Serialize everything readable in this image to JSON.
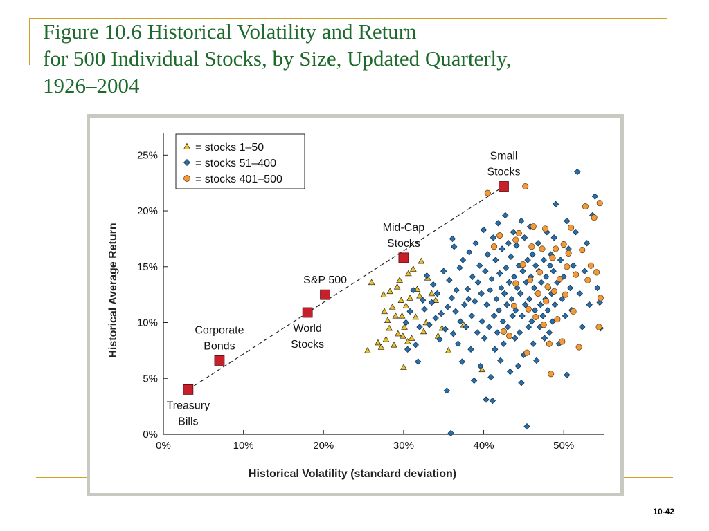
{
  "slide": {
    "title_lines": [
      "Figure 10.6  Historical Volatility and Return",
      "for 500 Individual Stocks, by Size, Updated Quarterly,",
      "1926–2004"
    ],
    "page_number": "10-42"
  },
  "colors": {
    "title": "#1d6a2c",
    "accent_rule": "#d4a020",
    "portfolio_marker": "#c8202a",
    "stocks_1_50": "#f0c030",
    "stocks_51_400": "#2a6fa8",
    "stocks_401_500": "#f2993a"
  },
  "chart_data": {
    "type": "scatter",
    "xlabel": "Historical Volatility (standard deviation)",
    "ylabel": "Historical Average Return",
    "xlim": [
      0,
      55
    ],
    "ylim": [
      0,
      27
    ],
    "x_ticks": [
      0,
      10,
      20,
      30,
      40,
      50
    ],
    "y_ticks": [
      0,
      5,
      10,
      15,
      20,
      25
    ],
    "x_tick_labels": [
      "0%",
      "10%",
      "20%",
      "30%",
      "40%",
      "50%"
    ],
    "y_tick_labels": [
      "0%",
      "5%",
      "10%",
      "15%",
      "20%",
      "25%"
    ],
    "grid": false,
    "legend_position": "top-left",
    "legend": [
      {
        "marker": "triangle",
        "label": "= stocks 1–50"
      },
      {
        "marker": "diamond",
        "label": "= stocks 51–400"
      },
      {
        "marker": "circle",
        "label": "= stocks 401–500"
      }
    ],
    "portfolios": [
      {
        "name": "Treasury Bills",
        "lines": [
          "Treasury",
          "Bills"
        ],
        "x": 3.1,
        "y": 4.0,
        "label_pos": "below"
      },
      {
        "name": "Corporate Bonds",
        "lines": [
          "Corporate",
          "Bonds"
        ],
        "x": 7.0,
        "y": 6.6,
        "label_pos": "above"
      },
      {
        "name": "World Stocks",
        "lines": [
          "World",
          "Stocks"
        ],
        "x": 18.0,
        "y": 10.9,
        "label_pos": "below"
      },
      {
        "name": "S&P 500",
        "lines": [
          "S&P 500"
        ],
        "x": 20.2,
        "y": 12.5,
        "label_pos": "above"
      },
      {
        "name": "Mid-Cap Stocks",
        "lines": [
          "Mid-Cap",
          "Stocks"
        ],
        "x": 30.0,
        "y": 15.8,
        "label_pos": "above"
      },
      {
        "name": "Small Stocks",
        "lines": [
          "Small",
          "Stocks"
        ],
        "x": 42.5,
        "y": 22.2,
        "label_pos": "above"
      }
    ],
    "trend_line": {
      "from": [
        3.1,
        4.0
      ],
      "to": [
        42.5,
        22.2
      ],
      "style": "dashed"
    },
    "series": [
      {
        "name": "stocks 1–50",
        "marker": "triangle",
        "points": [
          [
            25.5,
            7.5
          ],
          [
            26.0,
            13.6
          ],
          [
            26.8,
            8.2
          ],
          [
            27.2,
            7.8
          ],
          [
            27.5,
            12.5
          ],
          [
            27.6,
            11.0
          ],
          [
            27.8,
            8.5
          ],
          [
            28.0,
            10.2
          ],
          [
            28.2,
            9.5
          ],
          [
            28.3,
            12.8
          ],
          [
            28.6,
            11.4
          ],
          [
            28.8,
            8.0
          ],
          [
            29.0,
            10.6
          ],
          [
            29.2,
            13.2
          ],
          [
            29.3,
            9.0
          ],
          [
            29.5,
            13.8
          ],
          [
            29.7,
            12.0
          ],
          [
            29.8,
            10.6
          ],
          [
            29.9,
            8.8
          ],
          [
            30.0,
            6.0
          ],
          [
            30.1,
            9.6
          ],
          [
            30.3,
            11.5
          ],
          [
            30.5,
            8.3
          ],
          [
            30.6,
            14.4
          ],
          [
            30.8,
            12.2
          ],
          [
            31.0,
            8.6
          ],
          [
            31.2,
            14.8
          ],
          [
            31.5,
            10.5
          ],
          [
            31.7,
            13.0
          ],
          [
            32.0,
            12.4
          ],
          [
            32.2,
            15.5
          ],
          [
            32.5,
            9.2
          ],
          [
            32.8,
            10.0
          ],
          [
            33.0,
            14.0
          ],
          [
            33.5,
            12.6
          ],
          [
            34.0,
            12.0
          ],
          [
            34.3,
            8.8
          ],
          [
            34.8,
            9.5
          ],
          [
            35.6,
            7.5
          ],
          [
            37.5,
            9.8
          ],
          [
            39.8,
            5.8
          ]
        ]
      },
      {
        "name": "stocks 51–400",
        "marker": "diamond",
        "points": [
          [
            30.3,
            10.0
          ],
          [
            30.5,
            7.6
          ],
          [
            30.8,
            11.0
          ],
          [
            31.2,
            12.9
          ],
          [
            31.5,
            8.0
          ],
          [
            31.8,
            6.5
          ],
          [
            32.0,
            9.6
          ],
          [
            32.4,
            12.0
          ],
          [
            32.6,
            11.2
          ],
          [
            32.9,
            14.2
          ],
          [
            33.2,
            9.8
          ],
          [
            33.5,
            11.8
          ],
          [
            33.7,
            13.4
          ],
          [
            34.0,
            10.4
          ],
          [
            34.2,
            12.6
          ],
          [
            34.5,
            8.5
          ],
          [
            34.7,
            10.8
          ],
          [
            35.0,
            14.6
          ],
          [
            35.2,
            9.4
          ],
          [
            35.4,
            3.9
          ],
          [
            35.5,
            11.4
          ],
          [
            35.7,
            13.8
          ],
          [
            35.9,
            0.1
          ],
          [
            36.0,
            12.2
          ],
          [
            36.1,
            17.5
          ],
          [
            36.2,
            9.0
          ],
          [
            36.3,
            16.8
          ],
          [
            36.5,
            11.0
          ],
          [
            36.6,
            12.9
          ],
          [
            36.8,
            8.1
          ],
          [
            37.0,
            14.9
          ],
          [
            37.1,
            10.1
          ],
          [
            37.3,
            6.5
          ],
          [
            37.4,
            15.6
          ],
          [
            37.6,
            11.6
          ],
          [
            37.8,
            9.6
          ],
          [
            38.0,
            13.0
          ],
          [
            38.1,
            12.1
          ],
          [
            38.2,
            16.3
          ],
          [
            38.4,
            7.6
          ],
          [
            38.5,
            10.6
          ],
          [
            38.6,
            14.1
          ],
          [
            38.8,
            4.8
          ],
          [
            38.9,
            11.9
          ],
          [
            39.0,
            17.1
          ],
          [
            39.2,
            9.1
          ],
          [
            39.3,
            13.6
          ],
          [
            39.5,
            15.1
          ],
          [
            39.6,
            6.1
          ],
          [
            39.7,
            12.6
          ],
          [
            39.8,
            10.1
          ],
          [
            40.0,
            18.3
          ],
          [
            40.1,
            8.6
          ],
          [
            40.2,
            14.6
          ],
          [
            40.3,
            3.1
          ],
          [
            40.4,
            11.6
          ],
          [
            40.5,
            16.1
          ],
          [
            40.7,
            9.6
          ],
          [
            40.8,
            12.9
          ],
          [
            40.9,
            5.1
          ],
          [
            41.0,
            13.9
          ],
          [
            41.1,
            3.0
          ],
          [
            41.2,
            17.6
          ],
          [
            41.3,
            10.6
          ],
          [
            41.4,
            7.6
          ],
          [
            41.5,
            15.6
          ],
          [
            41.6,
            12.1
          ],
          [
            41.7,
            9.1
          ],
          [
            41.8,
            18.9
          ],
          [
            41.9,
            11.1
          ],
          [
            42.0,
            14.4
          ],
          [
            42.1,
            6.6
          ],
          [
            42.2,
            13.1
          ],
          [
            42.3,
            16.6
          ],
          [
            42.4,
            10.1
          ],
          [
            42.5,
            8.1
          ],
          [
            42.6,
            12.6
          ],
          [
            42.7,
            19.6
          ],
          [
            42.8,
            14.9
          ],
          [
            42.9,
            11.6
          ],
          [
            43.0,
            9.6
          ],
          [
            43.1,
            17.1
          ],
          [
            43.2,
            13.6
          ],
          [
            43.3,
            5.6
          ],
          [
            43.4,
            15.9
          ],
          [
            43.5,
            12.1
          ],
          [
            43.6,
            10.6
          ],
          [
            43.7,
            18.1
          ],
          [
            43.8,
            14.1
          ],
          [
            43.9,
            8.6
          ],
          [
            44.0,
            11.1
          ],
          [
            44.1,
            16.9
          ],
          [
            44.2,
            13.1
          ],
          [
            44.3,
            6.1
          ],
          [
            44.4,
            15.1
          ],
          [
            44.5,
            9.1
          ],
          [
            44.6,
            12.6
          ],
          [
            44.7,
            19.1
          ],
          [
            44.8,
            10.6
          ],
          [
            44.9,
            14.6
          ],
          [
            45.0,
            7.1
          ],
          [
            45.1,
            17.6
          ],
          [
            45.2,
            11.6
          ],
          [
            45.3,
            13.6
          ],
          [
            45.4,
            0.7
          ],
          [
            45.5,
            15.6
          ],
          [
            45.6,
            9.6
          ],
          [
            45.7,
            12.1
          ],
          [
            45.8,
            18.6
          ],
          [
            45.9,
            14.1
          ],
          [
            46.0,
            10.1
          ],
          [
            46.1,
            16.1
          ],
          [
            46.2,
            8.1
          ],
          [
            46.3,
            13.1
          ],
          [
            46.4,
            11.1
          ],
          [
            46.5,
            15.1
          ],
          [
            46.6,
            6.6
          ],
          [
            46.7,
            12.6
          ],
          [
            46.8,
            17.1
          ],
          [
            46.9,
            14.6
          ],
          [
            47.0,
            9.6
          ],
          [
            47.1,
            11.6
          ],
          [
            47.2,
            13.6
          ],
          [
            47.3,
            16.6
          ],
          [
            47.4,
            10.6
          ],
          [
            47.5,
            15.6
          ],
          [
            47.6,
            8.6
          ],
          [
            47.7,
            12.1
          ],
          [
            47.8,
            14.1
          ],
          [
            47.9,
            18.1
          ],
          [
            48.0,
            11.1
          ],
          [
            48.1,
            13.1
          ],
          [
            48.2,
            9.1
          ],
          [
            48.3,
            15.1
          ],
          [
            48.4,
            16.1
          ],
          [
            48.5,
            12.6
          ],
          [
            48.6,
            10.1
          ],
          [
            48.7,
            14.6
          ],
          [
            48.8,
            17.6
          ],
          [
            48.9,
            11.6
          ],
          [
            49.0,
            20.6
          ],
          [
            49.2,
            13.6
          ],
          [
            49.4,
            8.1
          ],
          [
            49.6,
            15.6
          ],
          [
            49.8,
            12.1
          ],
          [
            50.0,
            14.1
          ],
          [
            50.2,
            10.6
          ],
          [
            50.4,
            19.1
          ],
          [
            50.6,
            16.6
          ],
          [
            50.8,
            13.1
          ],
          [
            51.0,
            11.1
          ],
          [
            51.2,
            15.1
          ],
          [
            51.5,
            18.1
          ],
          [
            51.7,
            23.5
          ],
          [
            52.0,
            12.6
          ],
          [
            52.3,
            9.6
          ],
          [
            52.6,
            14.6
          ],
          [
            52.9,
            17.1
          ],
          [
            53.2,
            11.6
          ],
          [
            53.6,
            19.6
          ],
          [
            53.9,
            21.3
          ],
          [
            54.2,
            13.1
          ],
          [
            54.5,
            11.8
          ],
          [
            54.6,
            9.5
          ],
          [
            50.4,
            5.3
          ],
          [
            44.7,
            4.6
          ]
        ]
      },
      {
        "name": "stocks 401–500",
        "marker": "circle",
        "points": [
          [
            40.5,
            21.6
          ],
          [
            41.3,
            16.8
          ],
          [
            42.0,
            17.8
          ],
          [
            42.5,
            9.2
          ],
          [
            43.2,
            8.8
          ],
          [
            43.8,
            11.5
          ],
          [
            44.0,
            13.5
          ],
          [
            44.4,
            18.0
          ],
          [
            44.9,
            15.2
          ],
          [
            45.2,
            22.2
          ],
          [
            45.4,
            7.3
          ],
          [
            45.6,
            11.2
          ],
          [
            45.8,
            13.8
          ],
          [
            46.0,
            16.8
          ],
          [
            46.2,
            18.6
          ],
          [
            46.5,
            10.5
          ],
          [
            46.8,
            12.6
          ],
          [
            47.0,
            14.5
          ],
          [
            47.3,
            16.6
          ],
          [
            47.5,
            9.8
          ],
          [
            47.8,
            11.9
          ],
          [
            48.0,
            13.2
          ],
          [
            48.2,
            8.1
          ],
          [
            48.4,
            5.4
          ],
          [
            48.6,
            15.8
          ],
          [
            48.8,
            12.8
          ],
          [
            49.0,
            16.6
          ],
          [
            49.2,
            10.3
          ],
          [
            49.5,
            13.9
          ],
          [
            49.8,
            8.3
          ],
          [
            50.0,
            17.0
          ],
          [
            50.2,
            12.5
          ],
          [
            50.4,
            15.0
          ],
          [
            50.6,
            16.2
          ],
          [
            50.9,
            18.5
          ],
          [
            51.2,
            11.0
          ],
          [
            51.5,
            14.3
          ],
          [
            51.9,
            7.8
          ],
          [
            52.3,
            16.5
          ],
          [
            52.7,
            20.4
          ],
          [
            53.0,
            13.8
          ],
          [
            53.4,
            15.1
          ],
          [
            53.8,
            19.4
          ],
          [
            54.1,
            14.5
          ],
          [
            54.5,
            20.7
          ],
          [
            54.6,
            12.2
          ],
          [
            54.4,
            9.6
          ],
          [
            44.0,
            17.4
          ],
          [
            47.7,
            18.4
          ]
        ]
      }
    ]
  }
}
